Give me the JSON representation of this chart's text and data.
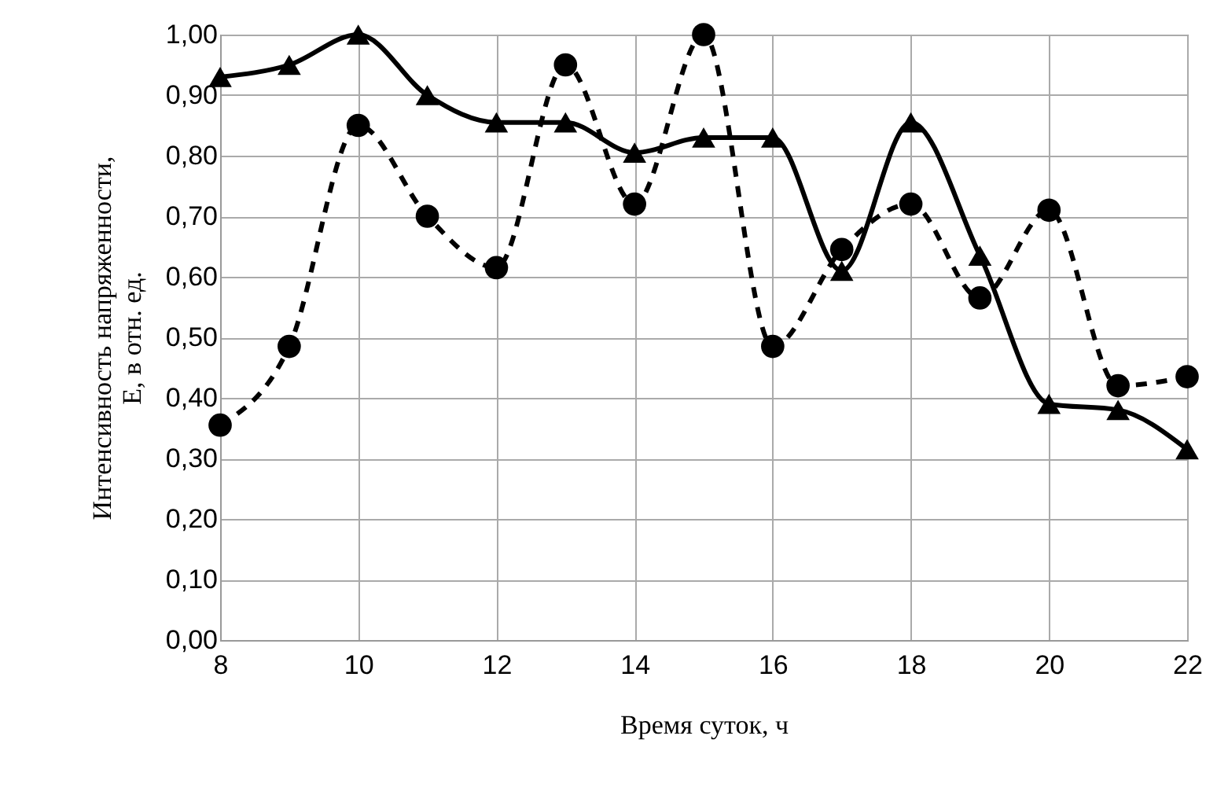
{
  "chart_data": {
    "type": "line",
    "xlabel": "Время суток, ч",
    "ylabel": "Интенсивность напряженности,\nE, в отн. ед.",
    "x": [
      8,
      9,
      10,
      11,
      12,
      13,
      14,
      15,
      16,
      17,
      18,
      19,
      20,
      21,
      22
    ],
    "series": [
      {
        "color": "#000000",
        "marker": "triangle",
        "line_style": "solid",
        "values": [
          0.93,
          0.95,
          1.0,
          0.9,
          0.855,
          0.855,
          0.805,
          0.83,
          0.83,
          0.61,
          0.855,
          0.635,
          0.39,
          0.38,
          0.315
        ]
      },
      {
        "color": "#000000",
        "marker": "circle",
        "line_style": "dashed",
        "values": [
          0.355,
          0.485,
          0.85,
          0.7,
          0.615,
          0.95,
          0.72,
          1.0,
          0.485,
          0.645,
          0.72,
          0.565,
          0.71,
          0.42,
          0.435
        ]
      }
    ],
    "xlim": [
      8,
      22
    ],
    "xticks": [
      8,
      10,
      12,
      14,
      16,
      18,
      20,
      22
    ],
    "ylim": [
      0,
      1
    ],
    "yticks": [
      {
        "value": 0,
        "label": "0,00"
      },
      {
        "value": 0.1,
        "label": "0,10"
      },
      {
        "value": 0.2,
        "label": "0,20"
      },
      {
        "value": 0.3,
        "label": "0,30"
      },
      {
        "value": 0.4,
        "label": "0,40"
      },
      {
        "value": 0.5,
        "label": "0,50"
      },
      {
        "value": 0.6,
        "label": "0,60"
      },
      {
        "value": 0.7,
        "label": "0,70"
      },
      {
        "value": 0.8,
        "label": "0,80"
      },
      {
        "value": 0.9,
        "label": "0,90"
      },
      {
        "value": 1,
        "label": "1,00"
      }
    ],
    "grid": true
  }
}
